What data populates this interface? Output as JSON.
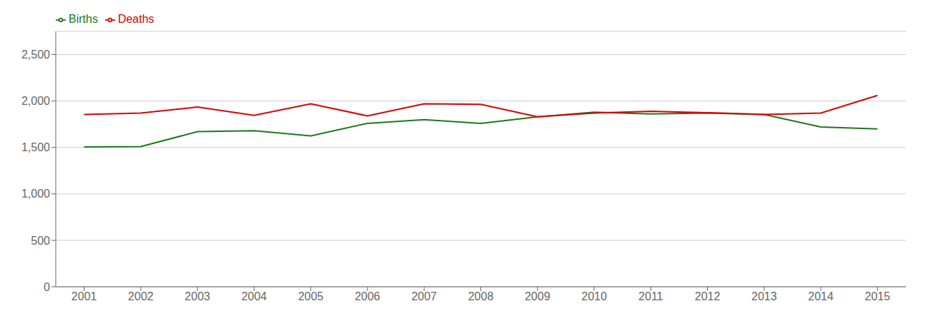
{
  "chart_data": {
    "type": "line",
    "x": [
      2001,
      2002,
      2003,
      2004,
      2005,
      2006,
      2007,
      2008,
      2009,
      2010,
      2011,
      2012,
      2013,
      2014,
      2015
    ],
    "series": [
      {
        "name": "Births",
        "color": "#1a7a1a",
        "values": [
          1505,
          1510,
          1670,
          1680,
          1625,
          1760,
          1800,
          1760,
          1830,
          1880,
          1860,
          1870,
          1855,
          1720,
          1700
        ]
      },
      {
        "name": "Deaths",
        "color": "#dd0000",
        "values": [
          1855,
          1870,
          1935,
          1845,
          1970,
          1840,
          1970,
          1965,
          1830,
          1870,
          1890,
          1875,
          1855,
          1870,
          2060
        ]
      }
    ],
    "xlim": [
      2000.5,
      2015.5
    ],
    "xticks": [
      2001,
      2002,
      2003,
      2004,
      2005,
      2006,
      2007,
      2008,
      2009,
      2010,
      2011,
      2012,
      2013,
      2014,
      2015
    ],
    "ylim": [
      0,
      2750
    ],
    "yticks": [
      0,
      500,
      {
        "value": 1000,
        "label": "1,000"
      },
      {
        "value": 1500,
        "label": "1,500"
      },
      {
        "value": 2000,
        "label": "2,000"
      },
      {
        "value": 2500,
        "label": "2,500"
      }
    ],
    "grid": "y",
    "legend": "upper left"
  }
}
